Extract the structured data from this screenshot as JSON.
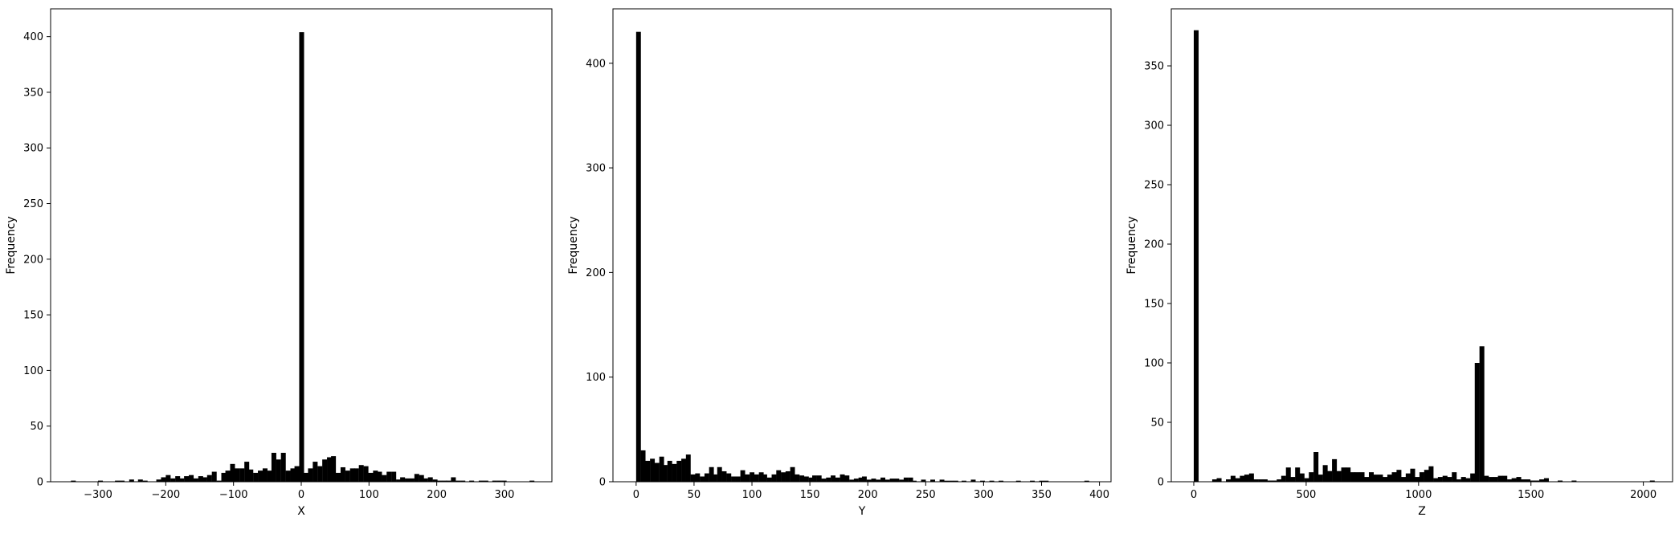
{
  "chart_data": [
    {
      "type": "bar",
      "xlabel": "X",
      "ylabel": "Frequency",
      "xlim": [
        -370,
        370
      ],
      "ylim": [
        0,
        425
      ],
      "xticks": [
        -300,
        -200,
        -100,
        0,
        100,
        200,
        300
      ],
      "xtick_labels": [
        "−300",
        "−200",
        "−100",
        "0",
        "100",
        "200",
        "300"
      ],
      "yticks": [
        0,
        50,
        100,
        150,
        200,
        250,
        300,
        350,
        400
      ],
      "ytick_labels": [
        "0",
        "50",
        "100",
        "150",
        "200",
        "250",
        "300",
        "350",
        "400"
      ],
      "bin_width": 6.8,
      "bins": [
        [
          -340,
          1
        ],
        [
          -300,
          1
        ],
        [
          -275,
          1
        ],
        [
          -268,
          1
        ],
        [
          -254,
          2
        ],
        [
          -241,
          2
        ],
        [
          -234,
          1
        ],
        [
          -214,
          2
        ],
        [
          -207,
          4
        ],
        [
          -200,
          6
        ],
        [
          -193,
          3
        ],
        [
          -186,
          5
        ],
        [
          -180,
          3
        ],
        [
          -173,
          5
        ],
        [
          -166,
          6
        ],
        [
          -159,
          3
        ],
        [
          -152,
          5
        ],
        [
          -146,
          4
        ],
        [
          -139,
          6
        ],
        [
          -132,
          9
        ],
        [
          -125,
          1
        ],
        [
          -118,
          8
        ],
        [
          -112,
          10
        ],
        [
          -105,
          16
        ],
        [
          -98,
          12
        ],
        [
          -91,
          12
        ],
        [
          -84,
          18
        ],
        [
          -78,
          11
        ],
        [
          -71,
          8
        ],
        [
          -64,
          10
        ],
        [
          -57,
          12
        ],
        [
          -50,
          10
        ],
        [
          -44,
          26
        ],
        [
          -37,
          20
        ],
        [
          -30,
          26
        ],
        [
          -23,
          10
        ],
        [
          -16,
          12
        ],
        [
          -10,
          14
        ],
        [
          -3,
          404
        ],
        [
          4,
          8
        ],
        [
          10,
          12
        ],
        [
          17,
          18
        ],
        [
          24,
          14
        ],
        [
          31,
          20
        ],
        [
          38,
          22
        ],
        [
          44,
          23
        ],
        [
          51,
          8
        ],
        [
          58,
          13
        ],
        [
          65,
          10
        ],
        [
          72,
          12
        ],
        [
          78,
          12
        ],
        [
          85,
          15
        ],
        [
          92,
          14
        ],
        [
          99,
          8
        ],
        [
          106,
          10
        ],
        [
          112,
          9
        ],
        [
          119,
          6
        ],
        [
          126,
          9
        ],
        [
          133,
          9
        ],
        [
          140,
          2
        ],
        [
          146,
          4
        ],
        [
          153,
          3
        ],
        [
          160,
          3
        ],
        [
          167,
          7
        ],
        [
          174,
          6
        ],
        [
          180,
          3
        ],
        [
          187,
          4
        ],
        [
          194,
          2
        ],
        [
          201,
          1
        ],
        [
          208,
          1
        ],
        [
          214,
          1
        ],
        [
          221,
          4
        ],
        [
          228,
          1
        ],
        [
          235,
          1
        ],
        [
          248,
          1
        ],
        [
          262,
          1
        ],
        [
          269,
          1
        ],
        [
          282,
          1
        ],
        [
          289,
          1
        ],
        [
          296,
          1
        ],
        [
          337,
          1
        ]
      ]
    },
    {
      "type": "bar",
      "xlabel": "Y",
      "ylabel": "Frequency",
      "xlim": [
        -20,
        410
      ],
      "ylim": [
        0,
        452
      ],
      "xticks": [
        0,
        50,
        100,
        150,
        200,
        250,
        300,
        350,
        400
      ],
      "xtick_labels": [
        "0",
        "50",
        "100",
        "150",
        "200",
        "250",
        "300",
        "350",
        "400"
      ],
      "yticks": [
        0,
        100,
        200,
        300,
        400
      ],
      "ytick_labels": [
        "0",
        "100",
        "200",
        "300",
        "400"
      ],
      "bin_width": 3.9,
      "bins": [
        [
          0,
          430
        ],
        [
          4,
          30
        ],
        [
          8,
          20
        ],
        [
          12,
          22
        ],
        [
          16,
          18
        ],
        [
          20,
          24
        ],
        [
          23,
          16
        ],
        [
          27,
          20
        ],
        [
          31,
          17
        ],
        [
          35,
          20
        ],
        [
          39,
          22
        ],
        [
          43,
          26
        ],
        [
          47,
          7
        ],
        [
          51,
          8
        ],
        [
          55,
          5
        ],
        [
          59,
          8
        ],
        [
          63,
          14
        ],
        [
          66,
          7
        ],
        [
          70,
          14
        ],
        [
          74,
          10
        ],
        [
          78,
          8
        ],
        [
          82,
          5
        ],
        [
          86,
          5
        ],
        [
          90,
          11
        ],
        [
          94,
          7
        ],
        [
          98,
          9
        ],
        [
          102,
          7
        ],
        [
          106,
          9
        ],
        [
          109,
          7
        ],
        [
          113,
          4
        ],
        [
          117,
          7
        ],
        [
          121,
          11
        ],
        [
          125,
          9
        ],
        [
          129,
          10
        ],
        [
          133,
          14
        ],
        [
          137,
          7
        ],
        [
          141,
          6
        ],
        [
          145,
          5
        ],
        [
          149,
          4
        ],
        [
          152,
          6
        ],
        [
          156,
          6
        ],
        [
          160,
          3
        ],
        [
          164,
          4
        ],
        [
          168,
          6
        ],
        [
          172,
          4
        ],
        [
          176,
          7
        ],
        [
          180,
          6
        ],
        [
          184,
          2
        ],
        [
          188,
          3
        ],
        [
          192,
          4
        ],
        [
          195,
          5
        ],
        [
          199,
          2
        ],
        [
          203,
          3
        ],
        [
          207,
          2
        ],
        [
          211,
          4
        ],
        [
          215,
          2
        ],
        [
          219,
          3
        ],
        [
          223,
          3
        ],
        [
          227,
          2
        ],
        [
          231,
          4
        ],
        [
          235,
          4
        ],
        [
          238,
          1
        ],
        [
          246,
          2
        ],
        [
          254,
          2
        ],
        [
          262,
          2
        ],
        [
          266,
          1
        ],
        [
          270,
          1
        ],
        [
          274,
          1
        ],
        [
          281,
          1
        ],
        [
          289,
          2
        ],
        [
          297,
          1
        ],
        [
          305,
          1
        ],
        [
          313,
          1
        ],
        [
          328,
          1
        ],
        [
          340,
          1
        ],
        [
          348,
          1
        ],
        [
          352,
          1
        ],
        [
          387,
          1
        ]
      ]
    },
    {
      "type": "bar",
      "xlabel": "Z",
      "ylabel": "Frequency",
      "xlim": [
        -100,
        2130
      ],
      "ylim": [
        0,
        398
      ],
      "xticks": [
        0,
        500,
        1000,
        1500,
        2000
      ],
      "xtick_labels": [
        "0",
        "500",
        "1000",
        "1500",
        "2000"
      ],
      "yticks": [
        0,
        50,
        100,
        150,
        200,
        250,
        300,
        350
      ],
      "ytick_labels": [
        "0",
        "50",
        "100",
        "150",
        "200",
        "250",
        "300",
        "350"
      ],
      "bin_width": 20.5,
      "bins": [
        [
          0,
          380
        ],
        [
          82,
          2
        ],
        [
          102,
          3
        ],
        [
          143,
          2
        ],
        [
          164,
          5
        ],
        [
          184,
          3
        ],
        [
          205,
          5
        ],
        [
          225,
          6
        ],
        [
          246,
          7
        ],
        [
          266,
          2
        ],
        [
          287,
          2
        ],
        [
          307,
          2
        ],
        [
          328,
          1
        ],
        [
          348,
          1
        ],
        [
          369,
          2
        ],
        [
          389,
          5
        ],
        [
          410,
          12
        ],
        [
          430,
          4
        ],
        [
          451,
          12
        ],
        [
          471,
          7
        ],
        [
          492,
          3
        ],
        [
          512,
          8
        ],
        [
          533,
          25
        ],
        [
          553,
          6
        ],
        [
          574,
          14
        ],
        [
          594,
          9
        ],
        [
          615,
          19
        ],
        [
          635,
          9
        ],
        [
          656,
          12
        ],
        [
          676,
          12
        ],
        [
          697,
          8
        ],
        [
          717,
          8
        ],
        [
          738,
          8
        ],
        [
          758,
          4
        ],
        [
          779,
          8
        ],
        [
          799,
          6
        ],
        [
          820,
          6
        ],
        [
          840,
          4
        ],
        [
          861,
          6
        ],
        [
          881,
          8
        ],
        [
          902,
          10
        ],
        [
          922,
          4
        ],
        [
          943,
          7
        ],
        [
          963,
          11
        ],
        [
          984,
          4
        ],
        [
          1004,
          8
        ],
        [
          1025,
          10
        ],
        [
          1045,
          13
        ],
        [
          1066,
          3
        ],
        [
          1086,
          4
        ],
        [
          1107,
          5
        ],
        [
          1127,
          4
        ],
        [
          1148,
          8
        ],
        [
          1168,
          2
        ],
        [
          1189,
          4
        ],
        [
          1209,
          3
        ],
        [
          1230,
          7
        ],
        [
          1250,
          100
        ],
        [
          1271,
          114
        ],
        [
          1291,
          5
        ],
        [
          1312,
          4
        ],
        [
          1332,
          4
        ],
        [
          1353,
          5
        ],
        [
          1373,
          5
        ],
        [
          1394,
          2
        ],
        [
          1414,
          3
        ],
        [
          1435,
          4
        ],
        [
          1455,
          2
        ],
        [
          1476,
          2
        ],
        [
          1496,
          1
        ],
        [
          1517,
          1
        ],
        [
          1537,
          2
        ],
        [
          1558,
          3
        ],
        [
          1619,
          1
        ],
        [
          1681,
          1
        ],
        [
          2029,
          1
        ]
      ]
    }
  ]
}
